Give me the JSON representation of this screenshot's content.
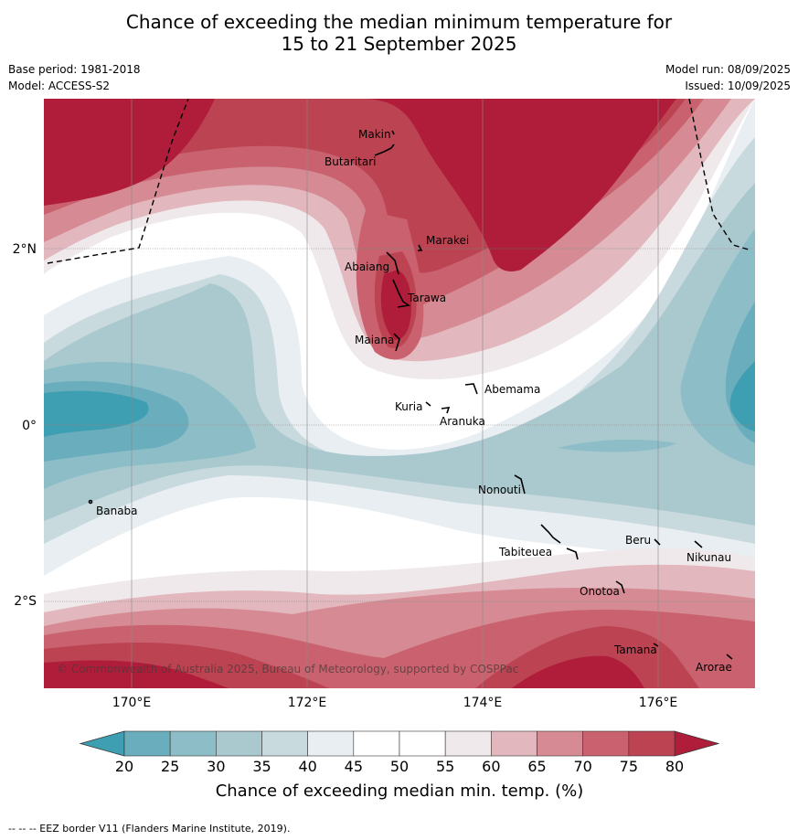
{
  "title": {
    "line1": "Chance of exceeding the median minimum temperature for",
    "line2": "15 to 21 September 2025"
  },
  "meta": {
    "base_period": "Base period: 1981-2018",
    "model": "Model: ACCESS-S2",
    "model_run": "Model run: 08/09/2025",
    "issued": "Issued: 10/09/2025"
  },
  "axes": {
    "lat_ticks": [
      "2°N",
      "0°",
      "2°S"
    ],
    "lon_ticks": [
      "170°E",
      "172°E",
      "174°E",
      "176°E"
    ]
  },
  "places": {
    "makin": "Makin",
    "butaritari": "Butaritari",
    "marakei": "Marakei",
    "abaiang": "Abaiang",
    "tarawa": "Tarawa",
    "maiana": "Maiana",
    "abemama": "Abemama",
    "kuria": "Kuria",
    "aranuka": "Aranuka",
    "nonouti": "Nonouti",
    "banaba": "Banaba",
    "beru": "Beru",
    "tabiteuea": "Tabiteuea",
    "nikunau": "Nikunau",
    "onotoa": "Onotoa",
    "tamana": "Tamana",
    "arorae": "Arorae"
  },
  "copyright": "© Commonwealth of Australia 2025, Bureau of Meteorology, supported by COSPPac",
  "colorbar": {
    "title": "Chance of exceeding median min. temp. (%)",
    "ticks": [
      "20",
      "25",
      "30",
      "35",
      "40",
      "45",
      "50",
      "55",
      "60",
      "65",
      "70",
      "75",
      "80"
    ],
    "colors": {
      "below20": "#3f9fb2",
      "20": "#6aaebd",
      "25": "#8dbec8",
      "30": "#aac9cf",
      "35": "#c9dadf",
      "40": "#e8eef1",
      "45": "#ffffff",
      "50": "#ffffff",
      "55": "#efe9eb",
      "60": "#e2b7bd",
      "65": "#d68a94",
      "70": "#c9626e",
      "75": "#bc4351",
      "above80": "#b01d3b"
    }
  },
  "footer": "--  --  -- EEZ border V11 (Flanders Marine Institute, 2019)."
}
